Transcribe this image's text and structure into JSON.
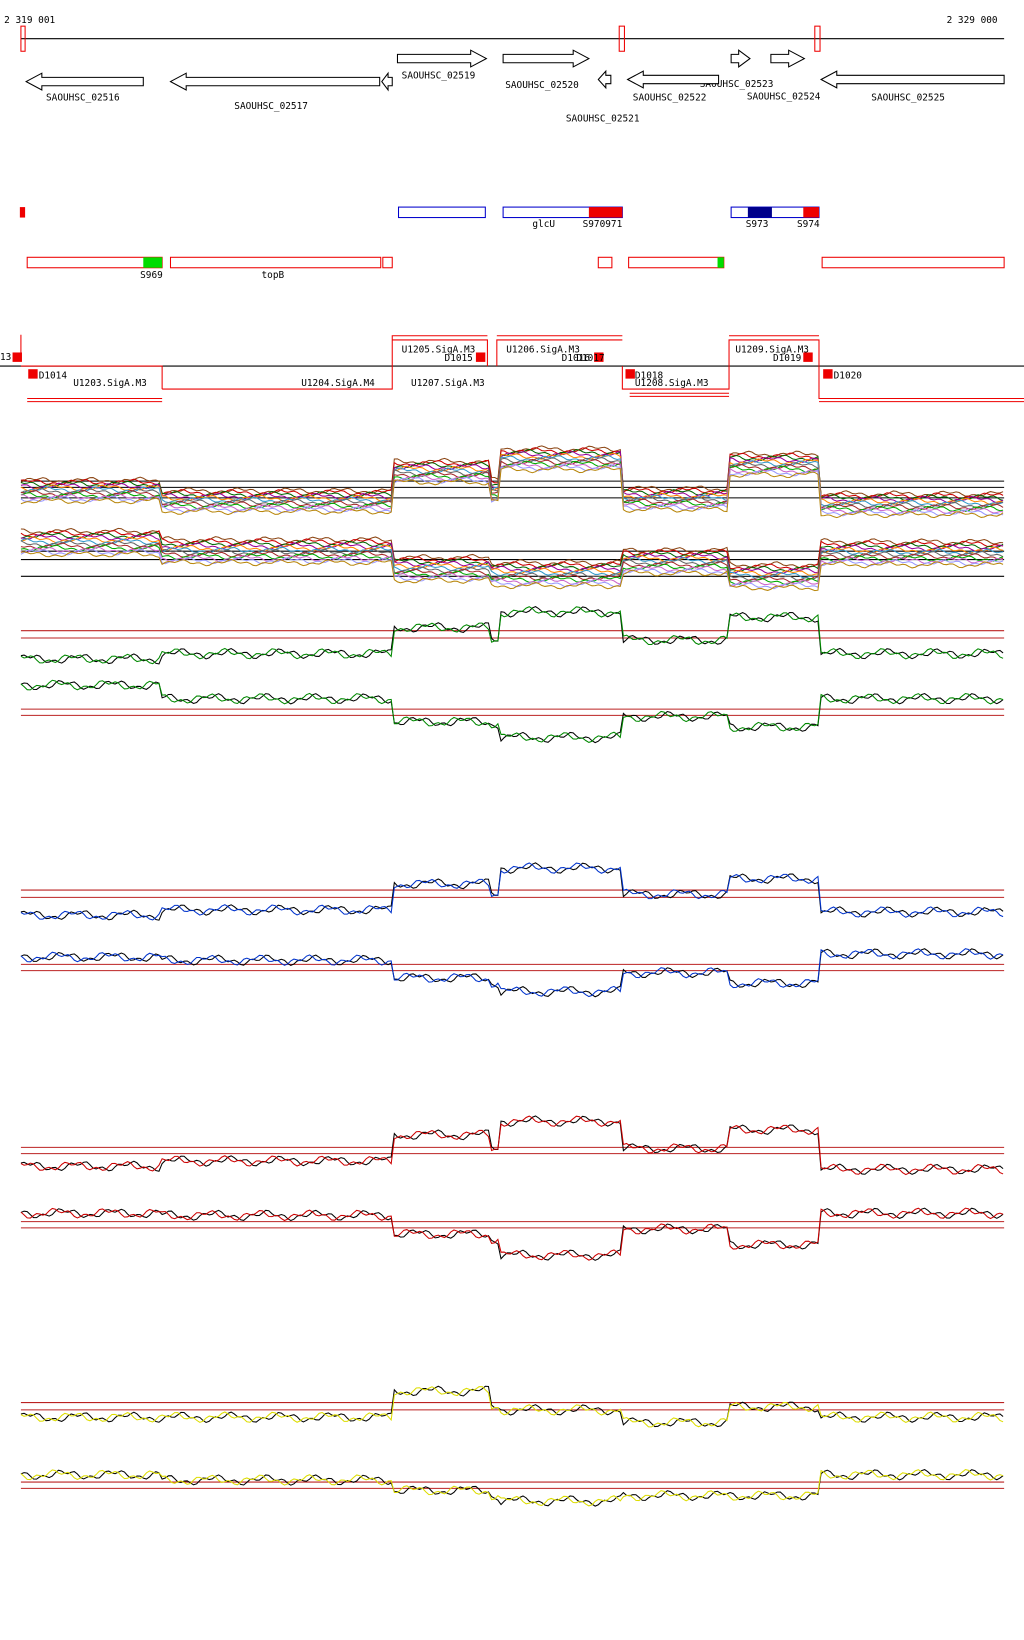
{
  "ruler": {
    "start": "2 319 001",
    "end": "2 329 000"
  },
  "genes": [
    {
      "label": "SAOUHSC_02516"
    },
    {
      "label": "SAOUHSC_02517"
    },
    {
      "label": "SAOUHSC_02519"
    },
    {
      "label": "SAOUHSC_02520"
    },
    {
      "label": "SAOUHSC_02521"
    },
    {
      "label": "SAOUHSC_02522"
    },
    {
      "label": "SAOUHSC_02523"
    },
    {
      "label": "SAOUHSC_02524"
    },
    {
      "label": "SAOUHSC_02525"
    }
  ],
  "features": [
    {
      "label": "glcU"
    },
    {
      "label": "S970971"
    },
    {
      "label": "S973"
    },
    {
      "label": "S974"
    },
    {
      "label": "S969"
    },
    {
      "label": "topB"
    }
  ],
  "transcripts": [
    {
      "label": "13"
    },
    {
      "label": "D1014"
    },
    {
      "label": "U1203.SigA.M3"
    },
    {
      "label": "U1204.SigA.M4"
    },
    {
      "label": "U1205.SigA.M3"
    },
    {
      "label": "D1015"
    },
    {
      "label": "U1207.SigA.M3"
    },
    {
      "label": "U1206.SigA.M3"
    },
    {
      "label": "D1016"
    },
    {
      "label": "D1017"
    },
    {
      "label": "D1018"
    },
    {
      "label": "U1208.SigA.M3"
    },
    {
      "label": "U1209.SigA.M3"
    },
    {
      "label": "D1019"
    },
    {
      "label": "D1020"
    }
  ]
}
